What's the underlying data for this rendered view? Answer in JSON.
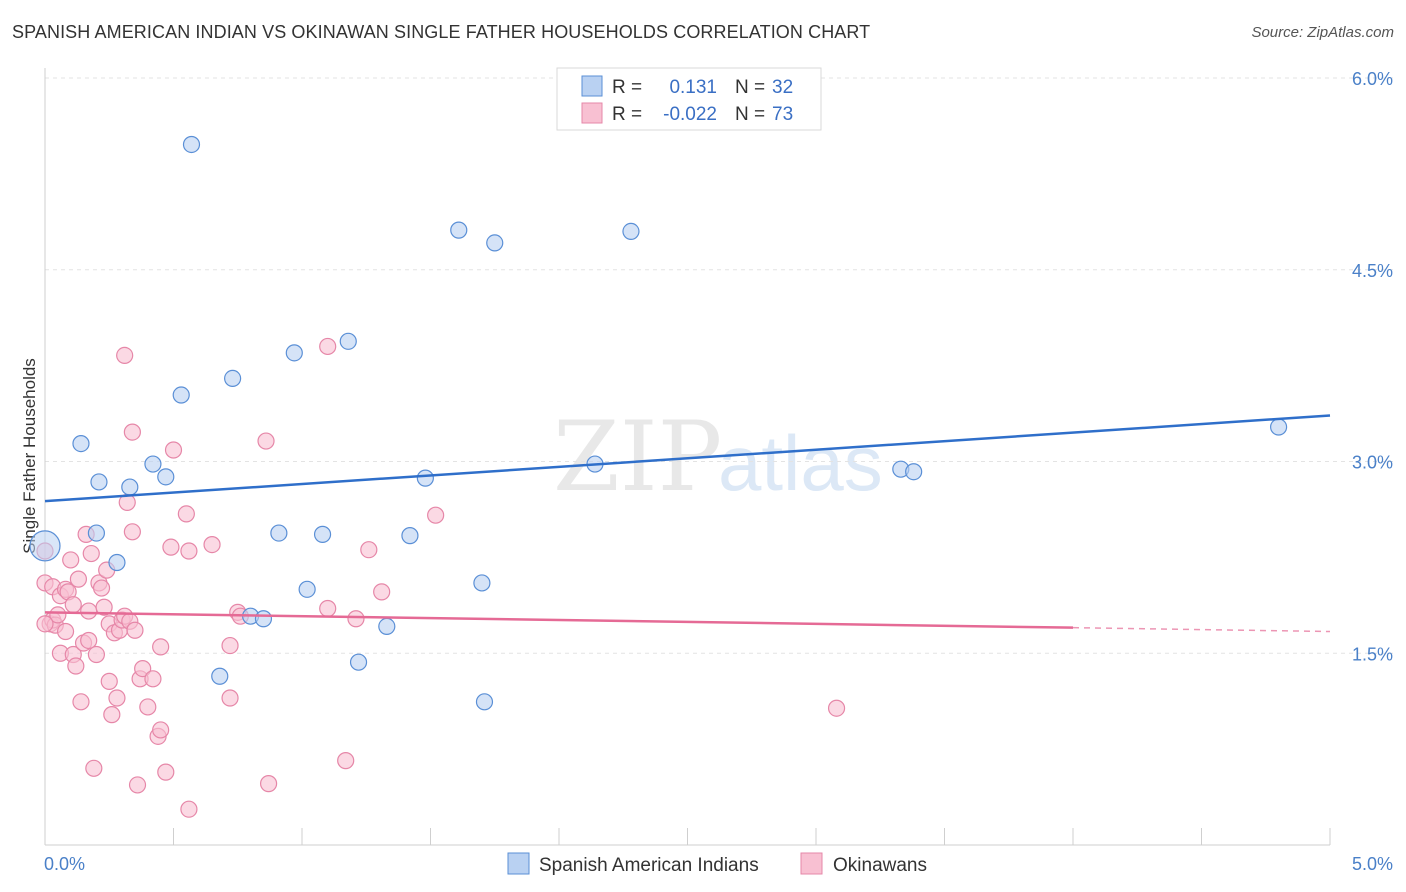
{
  "title": "SPANISH AMERICAN INDIAN VS OKINAWAN SINGLE FATHER HOUSEHOLDS CORRELATION CHART",
  "source": "Source: ZipAtlas.com",
  "watermark": {
    "zip": "ZIP",
    "atlas": "atlas"
  },
  "colors": {
    "blue_fill": "#b9d1f2",
    "blue_stroke": "#5a8fd6",
    "blue_line": "#2f6fca",
    "pink_fill": "#f8c0d2",
    "pink_stroke": "#e687a8",
    "pink_line": "#e56a95",
    "grid": "#e3e3e3",
    "tick_text": "#4a80c8"
  },
  "chart_data": {
    "type": "scatter",
    "title": "SPANISH AMERICAN INDIAN VS OKINAWAN SINGLE FATHER HOUSEHOLDS CORRELATION CHART",
    "xlabel": "",
    "ylabel": "Single Father Households",
    "xlim": [
      0,
      5.0
    ],
    "ylim": [
      0,
      6.0
    ],
    "x_tick_labels": [
      "0.0%",
      "5.0%"
    ],
    "y_ticks": [
      1.5,
      3.0,
      4.5,
      6.0
    ],
    "y_tick_labels": [
      "1.5%",
      "3.0%",
      "4.5%",
      "6.0%"
    ],
    "grid": true,
    "legend_stats": [
      {
        "r_label": "R =",
        "r_value": "0.131",
        "n_label": "N =",
        "n_value": "32"
      },
      {
        "r_label": "R =",
        "r_value": "-0.022",
        "n_label": "N =",
        "n_value": "73"
      }
    ],
    "series": [
      {
        "name": "Spanish American Indians",
        "trend": {
          "x": [
            0.0,
            5.0
          ],
          "y": [
            2.69,
            3.36
          ]
        },
        "points": [
          [
            0.0,
            2.34
          ],
          [
            0.2,
            2.44
          ],
          [
            0.14,
            3.14
          ],
          [
            0.21,
            2.84
          ],
          [
            0.28,
            2.21
          ],
          [
            0.33,
            2.8
          ],
          [
            0.42,
            2.98
          ],
          [
            0.47,
            2.88
          ],
          [
            0.53,
            3.52
          ],
          [
            0.57,
            5.48
          ],
          [
            0.68,
            1.32
          ],
          [
            0.73,
            3.65
          ],
          [
            0.8,
            1.79
          ],
          [
            0.85,
            1.77
          ],
          [
            0.91,
            2.44
          ],
          [
            0.97,
            3.85
          ],
          [
            1.02,
            2.0
          ],
          [
            1.08,
            2.43
          ],
          [
            1.18,
            3.94
          ],
          [
            1.22,
            1.43
          ],
          [
            1.33,
            1.71
          ],
          [
            1.42,
            2.42
          ],
          [
            1.48,
            2.87
          ],
          [
            1.61,
            4.81
          ],
          [
            1.7,
            2.05
          ],
          [
            1.71,
            1.12
          ],
          [
            1.75,
            4.71
          ],
          [
            2.14,
            2.98
          ],
          [
            2.28,
            4.8
          ],
          [
            3.33,
            2.94
          ],
          [
            3.38,
            2.92
          ],
          [
            4.8,
            3.27
          ]
        ]
      },
      {
        "name": "Okinawans",
        "trend": {
          "x": [
            0.0,
            4.0
          ],
          "y": [
            1.82,
            1.7
          ]
        },
        "trend_dashed": {
          "x": [
            4.0,
            5.0
          ],
          "y": [
            1.7,
            1.67
          ]
        },
        "points": [
          [
            0.0,
            2.3
          ],
          [
            0.0,
            2.05
          ],
          [
            0.02,
            1.73
          ],
          [
            0.03,
            2.02
          ],
          [
            0.03,
            1.76
          ],
          [
            0.04,
            1.72
          ],
          [
            0.05,
            1.8
          ],
          [
            0.06,
            1.95
          ],
          [
            0.06,
            1.5
          ],
          [
            0.08,
            2.0
          ],
          [
            0.08,
            1.67
          ],
          [
            0.09,
            1.98
          ],
          [
            0.1,
            2.23
          ],
          [
            0.11,
            1.49
          ],
          [
            0.11,
            1.88
          ],
          [
            0.12,
            1.4
          ],
          [
            0.13,
            2.08
          ],
          [
            0.14,
            1.12
          ],
          [
            0.15,
            1.58
          ],
          [
            0.16,
            2.43
          ],
          [
            0.17,
            1.83
          ],
          [
            0.17,
            1.6
          ],
          [
            0.18,
            2.28
          ],
          [
            0.19,
            0.6
          ],
          [
            0.2,
            1.49
          ],
          [
            0.21,
            2.05
          ],
          [
            0.22,
            2.01
          ],
          [
            0.23,
            1.86
          ],
          [
            0.24,
            2.15
          ],
          [
            0.25,
            1.73
          ],
          [
            0.25,
            1.28
          ],
          [
            0.26,
            1.02
          ],
          [
            0.27,
            1.66
          ],
          [
            0.28,
            1.15
          ],
          [
            0.29,
            1.68
          ],
          [
            0.3,
            1.76
          ],
          [
            0.31,
            3.83
          ],
          [
            0.31,
            1.79
          ],
          [
            0.32,
            2.68
          ],
          [
            0.33,
            1.75
          ],
          [
            0.34,
            2.45
          ],
          [
            0.34,
            3.23
          ],
          [
            0.35,
            1.68
          ],
          [
            0.36,
            0.47
          ],
          [
            0.37,
            1.3
          ],
          [
            0.38,
            1.38
          ],
          [
            0.4,
            1.08
          ],
          [
            0.42,
            1.3
          ],
          [
            0.44,
            0.85
          ],
          [
            0.45,
            0.9
          ],
          [
            0.45,
            1.55
          ],
          [
            0.47,
            0.57
          ],
          [
            0.49,
            2.33
          ],
          [
            0.5,
            3.09
          ],
          [
            0.55,
            2.59
          ],
          [
            0.56,
            0.28
          ],
          [
            0.56,
            2.3
          ],
          [
            0.65,
            2.35
          ],
          [
            0.72,
            1.15
          ],
          [
            0.72,
            1.56
          ],
          [
            0.75,
            1.82
          ],
          [
            0.76,
            1.79
          ],
          [
            0.86,
            3.16
          ],
          [
            0.87,
            0.48
          ],
          [
            1.1,
            1.85
          ],
          [
            1.1,
            3.9
          ],
          [
            1.17,
            0.66
          ],
          [
            1.21,
            1.77
          ],
          [
            1.26,
            2.31
          ],
          [
            1.31,
            1.98
          ],
          [
            1.52,
            2.58
          ],
          [
            3.08,
            1.07
          ],
          [
            0.0,
            1.73
          ]
        ]
      }
    ]
  }
}
